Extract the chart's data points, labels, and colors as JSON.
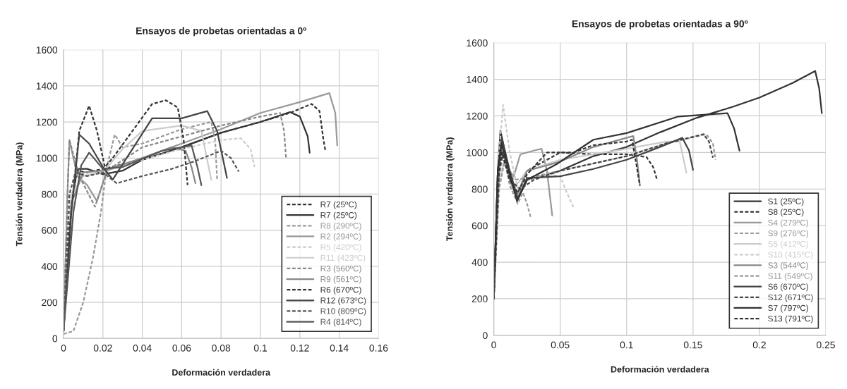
{
  "chart_data": [
    {
      "type": "line",
      "title": "Ensayos de probetas orientadas a 0º",
      "xlabel": "Deformación verdadera",
      "ylabel": "Tensión verdadera (MPa)",
      "xlim": [
        0,
        0.16
      ],
      "xticks": [
        0,
        0.02,
        0.04,
        0.06,
        0.08,
        0.1,
        0.12,
        0.14,
        0.16
      ],
      "ylim": [
        0,
        1600
      ],
      "yticks": [
        0,
        200,
        400,
        600,
        800,
        1000,
        1200,
        1400,
        1600
      ],
      "grid": true,
      "legend": "bottom right",
      "series": [
        {
          "name": "R7 (25ºC)",
          "color": "#333333",
          "line_style": "dashed",
          "x": [
            0,
            0.003,
            0.007,
            0.012,
            0.02,
            0.04,
            0.06,
            0.08,
            0.1,
            0.115,
            0.126,
            0.13,
            0.132,
            0.133
          ],
          "values": [
            40,
            700,
            930,
            920,
            940,
            990,
            1060,
            1140,
            1200,
            1250,
            1300,
            1260,
            1100,
            1040
          ]
        },
        {
          "name": "R7 (25ºC)",
          "color": "#333333",
          "line_style": "solid",
          "x": [
            0,
            0.004,
            0.007,
            0.012,
            0.02,
            0.03,
            0.04,
            0.06,
            0.08,
            0.1,
            0.115,
            0.12,
            0.124,
            0.125
          ],
          "values": [
            40,
            750,
            940,
            940,
            910,
            930,
            990,
            1060,
            1140,
            1200,
            1255,
            1230,
            1120,
            1030
          ]
        },
        {
          "name": "R8 (290ºC)",
          "color": "#999999",
          "line_style": "dashed",
          "x": [
            0,
            0.005,
            0.01,
            0.015,
            0.019,
            0.022,
            0.026,
            0.03,
            0.04,
            0.06,
            0.075,
            0.077,
            0.078
          ],
          "values": [
            25,
            40,
            200,
            450,
            700,
            950,
            1130,
            1060,
            1080,
            1160,
            1200,
            1100,
            880
          ]
        },
        {
          "name": "R2 (294ºC)",
          "color": "#999999",
          "line_style": "solid",
          "x": [
            0,
            0.002,
            0.003,
            0.007,
            0.012,
            0.017,
            0.022,
            0.04,
            0.06,
            0.08,
            0.1,
            0.12,
            0.135,
            0.138,
            0.139
          ],
          "values": [
            40,
            800,
            1100,
            900,
            850,
            760,
            930,
            1000,
            1080,
            1160,
            1250,
            1310,
            1360,
            1250,
            1070
          ]
        },
        {
          "name": "R5 (420ºC)",
          "color": "#cccccc",
          "line_style": "dashed",
          "x": [
            0,
            0.004,
            0.01,
            0.02,
            0.04,
            0.06,
            0.08,
            0.09,
            0.095,
            0.097
          ],
          "values": [
            40,
            800,
            900,
            930,
            990,
            1050,
            1100,
            1110,
            1050,
            950
          ]
        },
        {
          "name": "R11 (423ºC)",
          "color": "#cccccc",
          "line_style": "solid",
          "x": [
            0,
            0.004,
            0.01,
            0.02,
            0.03,
            0.04,
            0.06,
            0.07,
            0.075
          ],
          "values": [
            40,
            800,
            900,
            920,
            1050,
            1150,
            1180,
            1150,
            880
          ]
        },
        {
          "name": "R3 (560ºC)",
          "color": "#888888",
          "line_style": "dashed",
          "x": [
            0,
            0.002,
            0.003,
            0.008,
            0.016,
            0.022,
            0.04,
            0.06,
            0.08,
            0.1,
            0.11,
            0.112,
            0.113
          ],
          "values": [
            40,
            800,
            1100,
            900,
            730,
            930,
            1060,
            1120,
            1180,
            1230,
            1250,
            1150,
            1000
          ]
        },
        {
          "name": "R9 (561ºC)",
          "color": "#888888",
          "line_style": "solid",
          "x": [
            0,
            0.004,
            0.01,
            0.02,
            0.04,
            0.055,
            0.062,
            0.065,
            0.067
          ],
          "values": [
            40,
            750,
            920,
            930,
            1000,
            1060,
            1040,
            950,
            860
          ]
        },
        {
          "name": "R6 (670ºC)",
          "color": "#333333",
          "line_style": "dashed",
          "x": [
            0,
            0.003,
            0.008,
            0.013,
            0.017,
            0.021,
            0.025,
            0.035,
            0.045,
            0.052,
            0.058,
            0.061,
            0.063
          ],
          "values": [
            40,
            600,
            1150,
            1290,
            1150,
            950,
            1000,
            1150,
            1300,
            1320,
            1280,
            1100,
            850
          ]
        },
        {
          "name": "R12 (673ºC)",
          "color": "#444444",
          "line_style": "solid",
          "x": [
            0,
            0.004,
            0.008,
            0.013,
            0.02,
            0.025,
            0.035,
            0.045,
            0.06,
            0.073,
            0.078,
            0.083
          ],
          "values": [
            40,
            700,
            1130,
            1080,
            950,
            880,
            1050,
            1220,
            1220,
            1260,
            1150,
            890
          ]
        },
        {
          "name": "R10 (809ºC)",
          "color": "#555555",
          "line_style": "dashed",
          "x": [
            0,
            0.003,
            0.006,
            0.012,
            0.02,
            0.027,
            0.04,
            0.055,
            0.066,
            0.08,
            0.085,
            0.089
          ],
          "values": [
            40,
            800,
            920,
            900,
            920,
            860,
            900,
            940,
            980,
            1040,
            1000,
            925
          ]
        },
        {
          "name": "R4 (814ºC)",
          "color": "#555555",
          "line_style": "solid",
          "x": [
            0,
            0.005,
            0.009,
            0.013,
            0.02,
            0.03,
            0.05,
            0.065,
            0.068,
            0.07
          ],
          "values": [
            40,
            700,
            960,
            1030,
            940,
            950,
            1040,
            1070,
            950,
            850
          ]
        }
      ]
    },
    {
      "type": "line",
      "title": "Ensayos de probetas orientadas a 90º",
      "xlabel": "Deformación verdadera",
      "ylabel": "Tensión verdadera (MPa)",
      "xlim": [
        0,
        0.25
      ],
      "xticks": [
        0,
        0.05,
        0.1,
        0.15,
        0.2,
        0.25
      ],
      "ylim": [
        0,
        1600
      ],
      "yticks": [
        0,
        200,
        400,
        600,
        800,
        1000,
        1200,
        1400,
        1600
      ],
      "grid": true,
      "legend": "bottom right",
      "series": [
        {
          "name": "S1 (25ºC)",
          "color": "#333333",
          "line_style": "solid",
          "x": [
            0,
            0.003,
            0.005,
            0.01,
            0.0175,
            0.025,
            0.05,
            0.075,
            0.1,
            0.125,
            0.153,
            0.18,
            0.2,
            0.225,
            0.242,
            0.245,
            0.247
          ],
          "values": [
            200,
            900,
            1120,
            950,
            735,
            850,
            900,
            980,
            1030,
            1110,
            1190,
            1250,
            1300,
            1380,
            1446,
            1350,
            1215
          ]
        },
        {
          "name": "S8 (25ºC)",
          "color": "#333333",
          "line_style": "dashed",
          "x": [
            0,
            0.003,
            0.006,
            0.012,
            0.017,
            0.025,
            0.05,
            0.075,
            0.1,
            0.115,
            0.12,
            0.123
          ],
          "values": [
            200,
            850,
            1050,
            870,
            760,
            900,
            1000,
            990,
            990,
            975,
            920,
            850
          ]
        },
        {
          "name": "S4 (279ºC)",
          "color": "#999999",
          "line_style": "solid",
          "x": [
            0,
            0.003,
            0.006,
            0.012,
            0.015,
            0.02,
            0.03,
            0.036,
            0.04,
            0.044
          ],
          "values": [
            200,
            850,
            1020,
            900,
            870,
            990,
            1010,
            1020,
            900,
            655
          ]
        },
        {
          "name": "S9 (276ºC)",
          "color": "#999999",
          "line_style": "dashed",
          "x": [
            0,
            0.003,
            0.007,
            0.012,
            0.018,
            0.022,
            0.025,
            0.028
          ],
          "values": [
            200,
            800,
            1000,
            820,
            720,
            780,
            720,
            640
          ]
        },
        {
          "name": "S5 (412ºC)",
          "color": "#cccccc",
          "line_style": "solid",
          "x": [
            0,
            0.004,
            0.008,
            0.015,
            0.025,
            0.05,
            0.1,
            0.13,
            0.14,
            0.145
          ],
          "values": [
            200,
            850,
            950,
            800,
            900,
            960,
            1020,
            1060,
            1060,
            890
          ]
        },
        {
          "name": "S10 (415ºC)",
          "color": "#cccccc",
          "line_style": "dashed",
          "x": [
            0,
            0.004,
            0.007,
            0.012,
            0.018,
            0.025,
            0.04,
            0.05,
            0.055,
            0.06
          ],
          "values": [
            200,
            1000,
            1260,
            1000,
            800,
            850,
            880,
            870,
            780,
            700
          ]
        },
        {
          "name": "S3 (544ºC)",
          "color": "#888888",
          "line_style": "solid",
          "x": [
            0,
            0.004,
            0.006,
            0.012,
            0.017,
            0.025,
            0.05,
            0.075,
            0.1,
            0.105,
            0.108,
            0.11
          ],
          "values": [
            200,
            900,
            1030,
            850,
            760,
            900,
            950,
            1030,
            1080,
            1090,
            950,
            820
          ]
        },
        {
          "name": "S11 (549ºC)",
          "color": "#999999",
          "line_style": "dashed",
          "x": [
            0,
            0.004,
            0.008,
            0.015,
            0.025,
            0.05,
            0.1,
            0.13,
            0.16,
            0.165,
            0.167
          ],
          "values": [
            200,
            800,
            950,
            850,
            860,
            900,
            980,
            1050,
            1100,
            1050,
            960
          ]
        },
        {
          "name": "S6 (670ºC)",
          "color": "#444444",
          "line_style": "solid",
          "x": [
            0,
            0.003,
            0.006,
            0.012,
            0.018,
            0.025,
            0.05,
            0.075,
            0.1,
            0.125,
            0.142,
            0.147,
            0.15
          ],
          "values": [
            200,
            900,
            1080,
            900,
            750,
            860,
            870,
            910,
            960,
            1030,
            1080,
            1010,
            905
          ]
        },
        {
          "name": "S12 (671ºC)",
          "color": "#444444",
          "line_style": "dashed",
          "x": [
            0,
            0.004,
            0.007,
            0.012,
            0.02,
            0.03,
            0.05,
            0.1,
            0.13,
            0.158,
            0.162,
            0.165
          ],
          "values": [
            200,
            900,
            1000,
            850,
            800,
            850,
            900,
            980,
            1050,
            1100,
            1060,
            972
          ]
        },
        {
          "name": "S7 (797ºC)",
          "color": "#333333",
          "line_style": "solid",
          "x": [
            0,
            0.003,
            0.006,
            0.012,
            0.0175,
            0.025,
            0.047,
            0.075,
            0.1,
            0.139,
            0.176,
            0.181,
            0.185
          ],
          "values": [
            200,
            900,
            1050,
            880,
            735,
            850,
            935,
            1070,
            1106,
            1197,
            1215,
            1130,
            1010
          ]
        },
        {
          "name": "S13 (791ºC)",
          "color": "#333333",
          "line_style": "dashed",
          "x": [
            0,
            0.003,
            0.006,
            0.012,
            0.018,
            0.025,
            0.04,
            0.06,
            0.075,
            0.1,
            0.104,
            0.107,
            0.11
          ],
          "values": [
            200,
            850,
            1000,
            850,
            780,
            880,
            1000,
            1000,
            1040,
            1060,
            1070,
            950,
            820
          ]
        }
      ]
    }
  ]
}
